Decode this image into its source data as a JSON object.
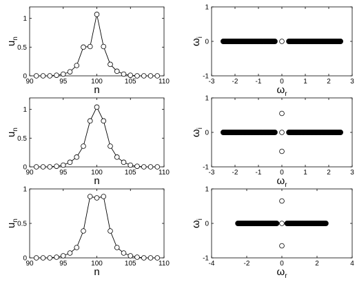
{
  "chart_data": [
    {
      "type": "line",
      "panel": "left-top",
      "xlabel": "n",
      "ylabel": {
        "main": "u",
        "sub": "n"
      },
      "xlim": [
        90,
        110
      ],
      "ylim": [
        0,
        1.2
      ],
      "xticks": [
        90,
        95,
        100,
        105,
        110
      ],
      "yticks": [
        0,
        0.5,
        1
      ],
      "grid": false,
      "series": [
        {
          "marker": "open-circle",
          "x": [
            91,
            92,
            93,
            94,
            95,
            96,
            97,
            98,
            99,
            100,
            101,
            102,
            103,
            104,
            105,
            106,
            107,
            108,
            109
          ],
          "y": [
            0,
            0,
            0,
            0.01,
            0.03,
            0.07,
            0.18,
            0.5,
            0.51,
            1.07,
            0.51,
            0.2,
            0.08,
            0.03,
            0.01,
            0,
            0,
            0,
            0
          ]
        }
      ]
    },
    {
      "type": "scatter",
      "panel": "right-top",
      "xlabel": {
        "main": "ω",
        "sub": "r"
      },
      "ylabel": {
        "main": "ω",
        "sub": "i"
      },
      "xlim": [
        -3,
        3
      ],
      "ylim": [
        -1,
        1
      ],
      "xticks": [
        -3,
        -2,
        -1,
        0,
        1,
        2,
        3
      ],
      "yticks": [
        -1,
        0,
        1
      ],
      "grid": false,
      "series": [
        {
          "marker": "filled-band",
          "y": 0,
          "x_range": [
            -2.5,
            -0.3
          ]
        },
        {
          "marker": "filled-band",
          "y": 0,
          "x_range": [
            0.3,
            2.5
          ]
        },
        {
          "marker": "open-circle",
          "x": [
            0
          ],
          "y": [
            0
          ]
        }
      ]
    },
    {
      "type": "line",
      "panel": "left-middle",
      "xlabel": "n",
      "ylabel": {
        "main": "u",
        "sub": "n"
      },
      "xlim": [
        90,
        110
      ],
      "ylim": [
        0,
        1.2
      ],
      "xticks": [
        90,
        95,
        100,
        105,
        110
      ],
      "yticks": [
        0,
        0.5,
        1
      ],
      "grid": false,
      "series": [
        {
          "marker": "open-circle",
          "x": [
            91,
            92,
            93,
            94,
            95,
            96,
            97,
            98,
            99,
            100,
            101,
            102,
            103,
            104,
            105,
            106,
            107,
            108,
            109
          ],
          "y": [
            0,
            0,
            0,
            0.01,
            0.03,
            0.08,
            0.17,
            0.36,
            0.8,
            1.04,
            0.8,
            0.36,
            0.17,
            0.08,
            0.03,
            0.01,
            0,
            0,
            0
          ]
        }
      ]
    },
    {
      "type": "scatter",
      "panel": "right-middle",
      "xlabel": {
        "main": "ω",
        "sub": "r"
      },
      "ylabel": {
        "main": "ω",
        "sub": "i"
      },
      "xlim": [
        -3,
        3
      ],
      "ylim": [
        -1,
        1
      ],
      "xticks": [
        -3,
        -2,
        -1,
        0,
        1,
        2,
        3
      ],
      "yticks": [
        -1,
        0,
        1
      ],
      "grid": false,
      "series": [
        {
          "marker": "filled-band",
          "y": 0,
          "x_range": [
            -2.5,
            -0.3
          ]
        },
        {
          "marker": "filled-band",
          "y": 0,
          "x_range": [
            0.3,
            2.5
          ]
        },
        {
          "marker": "open-circle",
          "x": [
            0,
            0,
            0
          ],
          "y": [
            0.55,
            0,
            -0.55
          ]
        }
      ]
    },
    {
      "type": "line",
      "panel": "left-bottom",
      "xlabel": "n",
      "ylabel": {
        "main": "u",
        "sub": "n"
      },
      "xlim": [
        90,
        110
      ],
      "ylim": [
        0,
        1
      ],
      "xticks": [
        90,
        95,
        100,
        105,
        110
      ],
      "yticks": [
        0,
        0.5,
        1
      ],
      "grid": false,
      "series": [
        {
          "marker": "open-circle",
          "x": [
            91,
            92,
            93,
            94,
            95,
            96,
            97,
            98,
            99,
            100,
            101,
            102,
            103,
            104,
            105,
            106,
            107,
            108,
            109
          ],
          "y": [
            0,
            0,
            0,
            0.01,
            0.03,
            0.07,
            0.15,
            0.39,
            0.89,
            0.87,
            0.89,
            0.39,
            0.15,
            0.07,
            0.03,
            0.01,
            0,
            0,
            0
          ]
        }
      ]
    },
    {
      "type": "scatter",
      "panel": "right-bottom",
      "xlabel": {
        "main": "ω",
        "sub": "r"
      },
      "ylabel": {
        "main": "ω",
        "sub": "i"
      },
      "xlim": [
        -4,
        4
      ],
      "ylim": [
        -1,
        1
      ],
      "xticks": [
        -4,
        -2,
        0,
        2,
        4
      ],
      "yticks": [
        -1,
        0,
        1
      ],
      "grid": false,
      "series": [
        {
          "marker": "filled-band",
          "y": 0,
          "x_range": [
            -2.5,
            -0.3
          ]
        },
        {
          "marker": "filled-band",
          "y": 0,
          "x_range": [
            0.3,
            2.5
          ]
        },
        {
          "marker": "open-circle",
          "x": [
            0,
            0,
            0
          ],
          "y": [
            0.65,
            0,
            -0.65
          ]
        }
      ]
    }
  ]
}
